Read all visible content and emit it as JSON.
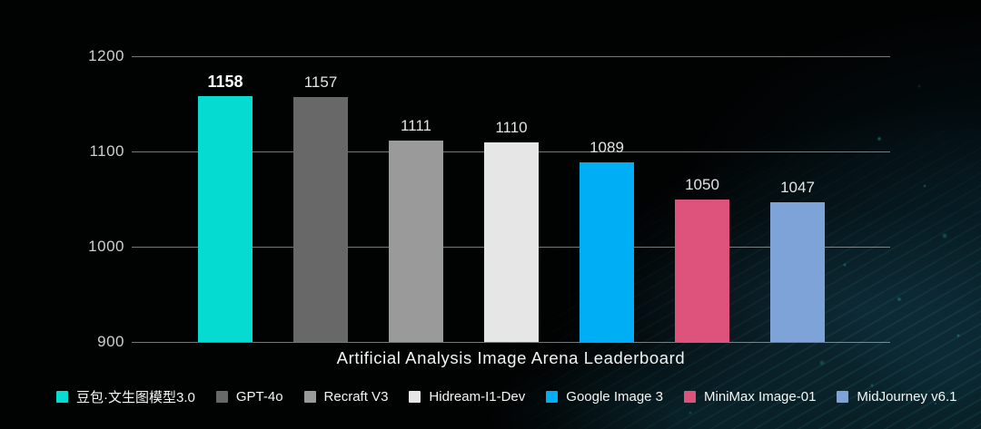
{
  "title": "Artificial Analysis Image Arena Leaderboard",
  "colors": {
    "background": "#010202",
    "texture_teal": "#12463f",
    "gridline": "#cdcdcd",
    "tick_text": "#cfcfcf",
    "value_text": "#e3e3e3",
    "highlight_value_text": "#ffffff",
    "title_text": "#f2f2f2",
    "legend_text": "#f5f5f5"
  },
  "chart_data": {
    "type": "bar",
    "title": "Artificial Analysis Image Arena Leaderboard",
    "categories": [
      "豆包·文生图模型3.0",
      "GPT-4o",
      "Recraft V3",
      "Hidream-I1-Dev",
      "Google Image 3",
      "MiniMax Image-01",
      "MidJourney v6.1"
    ],
    "values": [
      1158,
      1157,
      1111,
      1110,
      1089,
      1050,
      1047
    ],
    "bar_colors": [
      "#05dbd1",
      "#686868",
      "#9a9a9a",
      "#e6e6e6",
      "#00aef5",
      "#de537c",
      "#7ea3d9"
    ],
    "value_labels": [
      "1158",
      "1157",
      "1111",
      "1110",
      "1089",
      "1050",
      "1047"
    ],
    "highlight_index": 0,
    "ylim": [
      900,
      1200
    ],
    "yticks": [
      900,
      1000,
      1100,
      1200
    ],
    "ytick_labels": [
      "900",
      "1000",
      "1100",
      "1200"
    ],
    "xlabel": "",
    "ylabel": "",
    "grid": true,
    "grid_axis": "y",
    "legend_position": "bottom",
    "legend_entries": [
      {
        "label": "豆包·文生图模型3.0",
        "color": "#05dbd1"
      },
      {
        "label": "GPT-4o",
        "color": "#686868"
      },
      {
        "label": "Recraft V3",
        "color": "#9a9a9a"
      },
      {
        "label": "Hidream-I1-Dev",
        "color": "#e6e6e6"
      },
      {
        "label": "Google Image 3",
        "color": "#00aef5"
      },
      {
        "label": "MiniMax Image-01",
        "color": "#de537c"
      },
      {
        "label": "MidJourney v6.1",
        "color": "#7ea3d9"
      }
    ]
  }
}
